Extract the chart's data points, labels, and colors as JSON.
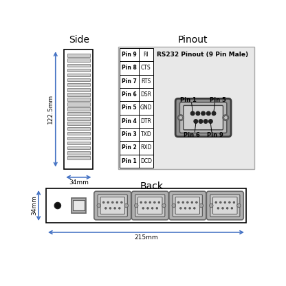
{
  "title_side": "Side",
  "title_pinout": "Pinout",
  "title_back": "Back",
  "side_dim_height": "122.5mm",
  "side_dim_width": "34mm",
  "back_dim_height": "34mm",
  "back_dim_width": "215mm",
  "pinout_title": "RS232 Pinout (9 Pin Male)",
  "pin_labels": [
    "Pin 1",
    "Pin 2",
    "Pin 3",
    "Pin 4",
    "Pin 5",
    "Pin 6",
    "Pin 7",
    "Pin 8",
    "Pin 9"
  ],
  "pin_names": [
    "DCD",
    "RXD",
    "TXD",
    "DTR",
    "GND",
    "DSR",
    "RTS",
    "CTS",
    "RI"
  ],
  "bg_color": "#ffffff",
  "blue": "#4472c4",
  "side_vent_count": 22
}
